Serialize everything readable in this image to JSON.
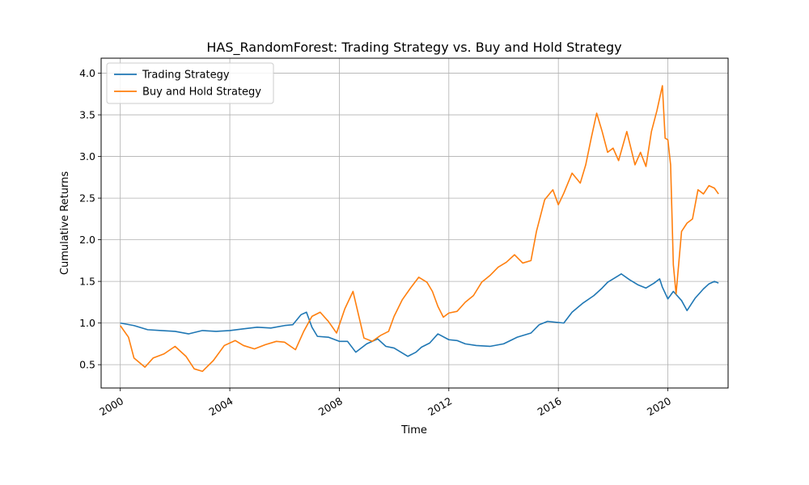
{
  "chart_data": {
    "type": "line",
    "title": "HAS_RandomForest: Trading Strategy vs. Buy and Hold Strategy",
    "xlabel": "Time",
    "ylabel": "Cumulative Returns",
    "xlim": [
      1999.3,
      2022.2
    ],
    "ylim": [
      0.22,
      4.18
    ],
    "x_ticks": [
      2000,
      2004,
      2008,
      2012,
      2016,
      2020
    ],
    "x_tick_labels": [
      "2000",
      "2004",
      "2008",
      "2012",
      "2016",
      "2020"
    ],
    "y_ticks": [
      0.5,
      1.0,
      1.5,
      2.0,
      2.5,
      3.0,
      3.5,
      4.0
    ],
    "y_tick_labels": [
      "0.5",
      "1.0",
      "1.5",
      "2.0",
      "2.5",
      "3.0",
      "3.5",
      "4.0"
    ],
    "grid": true,
    "legend_position": "upper-left",
    "series": [
      {
        "name": "Trading Strategy",
        "color": "#1f77b4",
        "points": [
          [
            2000.0,
            1.0
          ],
          [
            2000.5,
            0.97
          ],
          [
            2001.0,
            0.92
          ],
          [
            2001.5,
            0.91
          ],
          [
            2002.0,
            0.9
          ],
          [
            2002.5,
            0.87
          ],
          [
            2003.0,
            0.91
          ],
          [
            2003.5,
            0.9
          ],
          [
            2004.0,
            0.91
          ],
          [
            2004.5,
            0.93
          ],
          [
            2005.0,
            0.95
          ],
          [
            2005.5,
            0.94
          ],
          [
            2006.0,
            0.97
          ],
          [
            2006.3,
            0.98
          ],
          [
            2006.6,
            1.1
          ],
          [
            2006.8,
            1.13
          ],
          [
            2007.0,
            0.95
          ],
          [
            2007.2,
            0.84
          ],
          [
            2007.6,
            0.83
          ],
          [
            2008.0,
            0.78
          ],
          [
            2008.3,
            0.78
          ],
          [
            2008.6,
            0.65
          ],
          [
            2009.0,
            0.75
          ],
          [
            2009.4,
            0.81
          ],
          [
            2009.7,
            0.72
          ],
          [
            2010.0,
            0.7
          ],
          [
            2010.5,
            0.6
          ],
          [
            2010.8,
            0.65
          ],
          [
            2011.0,
            0.71
          ],
          [
            2011.3,
            0.76
          ],
          [
            2011.6,
            0.87
          ],
          [
            2012.0,
            0.8
          ],
          [
            2012.3,
            0.79
          ],
          [
            2012.6,
            0.75
          ],
          [
            2013.0,
            0.73
          ],
          [
            2013.5,
            0.72
          ],
          [
            2014.0,
            0.75
          ],
          [
            2014.5,
            0.83
          ],
          [
            2015.0,
            0.88
          ],
          [
            2015.3,
            0.98
          ],
          [
            2015.6,
            1.02
          ],
          [
            2015.9,
            1.01
          ],
          [
            2016.2,
            1.0
          ],
          [
            2016.5,
            1.13
          ],
          [
            2016.9,
            1.24
          ],
          [
            2017.3,
            1.33
          ],
          [
            2017.6,
            1.42
          ],
          [
            2017.8,
            1.49
          ],
          [
            2018.0,
            1.53
          ],
          [
            2018.3,
            1.59
          ],
          [
            2018.6,
            1.52
          ],
          [
            2018.9,
            1.46
          ],
          [
            2019.2,
            1.42
          ],
          [
            2019.5,
            1.48
          ],
          [
            2019.7,
            1.53
          ],
          [
            2019.8,
            1.43
          ],
          [
            2020.0,
            1.29
          ],
          [
            2020.2,
            1.38
          ],
          [
            2020.5,
            1.27
          ],
          [
            2020.7,
            1.15
          ],
          [
            2021.0,
            1.3
          ],
          [
            2021.3,
            1.41
          ],
          [
            2021.5,
            1.47
          ],
          [
            2021.7,
            1.5
          ],
          [
            2021.85,
            1.48
          ]
        ]
      },
      {
        "name": "Buy and Hold Strategy",
        "color": "#ff7f0e",
        "points": [
          [
            2000.0,
            0.97
          ],
          [
            2000.3,
            0.83
          ],
          [
            2000.5,
            0.58
          ],
          [
            2000.9,
            0.47
          ],
          [
            2001.2,
            0.58
          ],
          [
            2001.6,
            0.63
          ],
          [
            2002.0,
            0.72
          ],
          [
            2002.4,
            0.6
          ],
          [
            2002.7,
            0.45
          ],
          [
            2003.0,
            0.42
          ],
          [
            2003.4,
            0.55
          ],
          [
            2003.8,
            0.73
          ],
          [
            2004.2,
            0.79
          ],
          [
            2004.5,
            0.73
          ],
          [
            2004.9,
            0.69
          ],
          [
            2005.3,
            0.74
          ],
          [
            2005.7,
            0.78
          ],
          [
            2006.0,
            0.77
          ],
          [
            2006.4,
            0.68
          ],
          [
            2006.7,
            0.9
          ],
          [
            2007.0,
            1.08
          ],
          [
            2007.3,
            1.13
          ],
          [
            2007.6,
            1.02
          ],
          [
            2007.9,
            0.88
          ],
          [
            2008.2,
            1.17
          ],
          [
            2008.5,
            1.38
          ],
          [
            2008.7,
            1.1
          ],
          [
            2008.9,
            0.82
          ],
          [
            2009.2,
            0.78
          ],
          [
            2009.5,
            0.85
          ],
          [
            2009.8,
            0.9
          ],
          [
            2010.0,
            1.08
          ],
          [
            2010.3,
            1.28
          ],
          [
            2010.6,
            1.42
          ],
          [
            2010.9,
            1.55
          ],
          [
            2011.2,
            1.49
          ],
          [
            2011.4,
            1.38
          ],
          [
            2011.6,
            1.2
          ],
          [
            2011.8,
            1.07
          ],
          [
            2012.0,
            1.12
          ],
          [
            2012.3,
            1.14
          ],
          [
            2012.6,
            1.25
          ],
          [
            2012.9,
            1.33
          ],
          [
            2013.2,
            1.49
          ],
          [
            2013.5,
            1.57
          ],
          [
            2013.8,
            1.67
          ],
          [
            2014.1,
            1.73
          ],
          [
            2014.4,
            1.82
          ],
          [
            2014.7,
            1.72
          ],
          [
            2015.0,
            1.75
          ],
          [
            2015.2,
            2.1
          ],
          [
            2015.5,
            2.48
          ],
          [
            2015.8,
            2.6
          ],
          [
            2016.0,
            2.42
          ],
          [
            2016.2,
            2.56
          ],
          [
            2016.5,
            2.8
          ],
          [
            2016.8,
            2.68
          ],
          [
            2017.0,
            2.9
          ],
          [
            2017.2,
            3.22
          ],
          [
            2017.4,
            3.52
          ],
          [
            2017.6,
            3.3
          ],
          [
            2017.8,
            3.05
          ],
          [
            2018.0,
            3.1
          ],
          [
            2018.2,
            2.95
          ],
          [
            2018.5,
            3.3
          ],
          [
            2018.8,
            2.9
          ],
          [
            2019.0,
            3.05
          ],
          [
            2019.2,
            2.88
          ],
          [
            2019.4,
            3.3
          ],
          [
            2019.6,
            3.55
          ],
          [
            2019.8,
            3.85
          ],
          [
            2019.9,
            3.22
          ],
          [
            2020.0,
            3.2
          ],
          [
            2020.1,
            2.9
          ],
          [
            2020.2,
            1.7
          ],
          [
            2020.3,
            1.35
          ],
          [
            2020.5,
            2.1
          ],
          [
            2020.7,
            2.2
          ],
          [
            2020.9,
            2.25
          ],
          [
            2021.1,
            2.6
          ],
          [
            2021.3,
            2.55
          ],
          [
            2021.5,
            2.65
          ],
          [
            2021.7,
            2.62
          ],
          [
            2021.85,
            2.55
          ]
        ]
      }
    ]
  }
}
